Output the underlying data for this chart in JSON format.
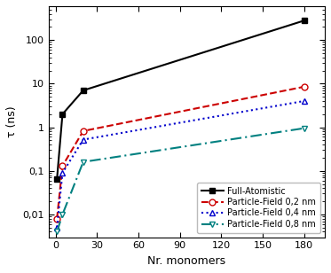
{
  "full_atomistic": {
    "x": [
      1,
      5,
      20,
      180
    ],
    "y": [
      0.065,
      2.0,
      7.0,
      280
    ],
    "color": "#000000",
    "linestyle": "-",
    "marker": "s",
    "markerfacecolor": "#000000",
    "markeredgecolor": "#000000",
    "label": "Full-Atomistic",
    "markersize": 5,
    "linewidth": 1.5
  },
  "pf_02": {
    "x": [
      1,
      5,
      20,
      180
    ],
    "y": [
      0.008,
      0.13,
      0.82,
      8.5
    ],
    "color": "#cc0000",
    "linestyle": "--",
    "marker": "o",
    "markerfacecolor": "white",
    "markeredgecolor": "#cc0000",
    "label": "Particle-Field 0,2 nm",
    "markersize": 5,
    "linewidth": 1.5
  },
  "pf_04": {
    "x": [
      1,
      5,
      20,
      180
    ],
    "y": [
      0.005,
      0.09,
      0.52,
      4.0
    ],
    "color": "#0000cc",
    "linestyle": ":",
    "marker": "^",
    "markerfacecolor": "white",
    "markeredgecolor": "#0000cc",
    "label": "Particle-Field 0,4 nm",
    "markersize": 5,
    "linewidth": 1.5
  },
  "pf_08": {
    "x": [
      1,
      5,
      20,
      180
    ],
    "y": [
      0.004,
      0.01,
      0.16,
      0.95
    ],
    "color": "#008080",
    "linestyle": "--",
    "dashes": [
      6,
      2,
      1,
      2
    ],
    "marker": "v",
    "markerfacecolor": "white",
    "markeredgecolor": "#008080",
    "label": "Particle-Field 0,8 nm",
    "markersize": 5,
    "linewidth": 1.5
  },
  "xlabel": "Nr. monomers",
  "ylabel": "τ (ns)",
  "xlim": [
    -5,
    195
  ],
  "ylim": [
    0.003,
    600
  ],
  "xticks": [
    0,
    30,
    60,
    90,
    120,
    150,
    180
  ],
  "ytick_labels": {
    "0.01": "0,01",
    "0.1": "0,1",
    "1": "1",
    "10": "10",
    "100": "100"
  },
  "background_color": "#ffffff",
  "legend_loc": "lower right"
}
